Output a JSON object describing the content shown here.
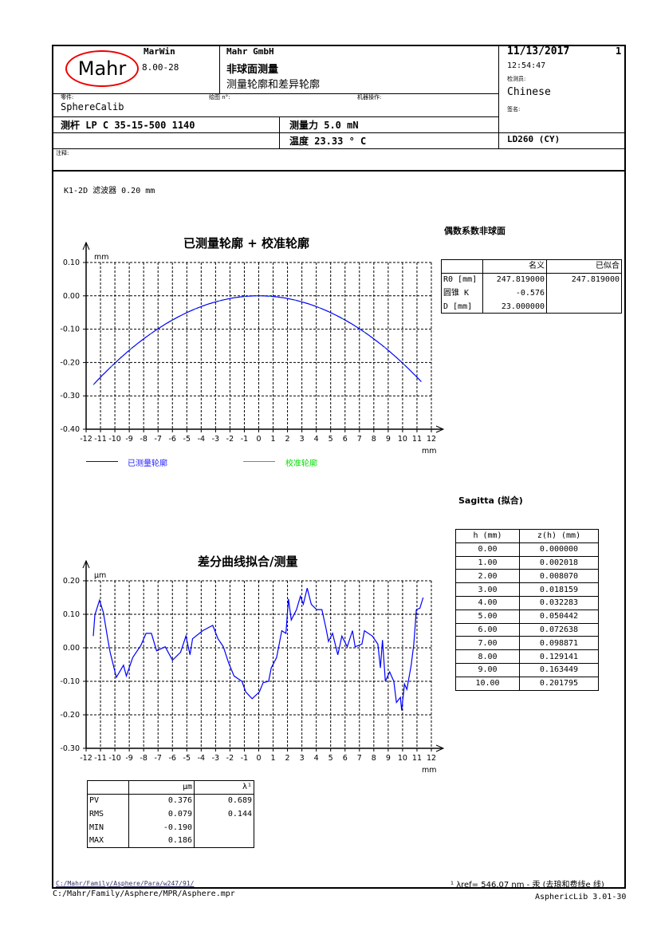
{
  "header": {
    "logo_text": "Mahr",
    "software": "MarWin",
    "version": "8.00-28",
    "company": "Mahr GmbH",
    "title": "非球面测量",
    "subtitle": "测量轮廓和差异轮廓",
    "date": "11/13/2017",
    "page": "1",
    "time": "12:54:47",
    "inspector_label": "检测员:",
    "inspector": "Chinese",
    "signature_label": "签名:",
    "part_label": "零件:",
    "part": "SphereCalib",
    "drawing_label": "绘图 n°:",
    "operator_label": "机器操作:",
    "stylus": "测杆 LP C 35-15-500 1140",
    "force": "测量力 5.0 mN",
    "temperature": "温度 23.33 ° C",
    "machine": "LD260 (CY)",
    "comment_label": "注释:"
  },
  "filter": "K1-2D 滤波器 0.20   mm",
  "coeff_table": {
    "title": "偶数系数非球面",
    "headers": [
      "",
      "名义",
      "已似合"
    ],
    "rows": [
      [
        "R0 [mm]",
        "247.819000",
        "247.819000"
      ],
      [
        "圆锥 K",
        "-0.576",
        ""
      ],
      [
        "D [mm]",
        "23.000000",
        ""
      ]
    ]
  },
  "sagitta_table": {
    "title": "Sagitta (拟合)",
    "headers": [
      "h (mm)",
      "z(h) (mm)"
    ],
    "rows": [
      [
        "0.00",
        "0.000000"
      ],
      [
        "1.00",
        "0.002018"
      ],
      [
        "2.00",
        "0.008070"
      ],
      [
        "3.00",
        "0.018159"
      ],
      [
        "4.00",
        "0.032283"
      ],
      [
        "5.00",
        "0.050442"
      ],
      [
        "6.00",
        "0.072638"
      ],
      [
        "7.00",
        "0.098871"
      ],
      [
        "8.00",
        "0.129141"
      ],
      [
        "9.00",
        "0.163449"
      ],
      [
        "10.00",
        "0.201795"
      ]
    ]
  },
  "stats_table": {
    "headers": [
      "",
      "μm",
      "λ¹"
    ],
    "rows": [
      [
        "PV",
        "0.376",
        "0.689"
      ],
      [
        "RMS",
        "0.079",
        "0.144"
      ],
      [
        "MIN",
        "-0.190",
        ""
      ],
      [
        "MAX",
        "0.186",
        ""
      ]
    ]
  },
  "footer": {
    "path1": "C:/Mahr/Family/Asphere/Para/w247/91/",
    "note": "¹ λref= 546.07 nm - 汞 (去琅和费线e 线)",
    "path2": "C:/Mahr/Family/Asphere/MPR/Asphere.mpr",
    "lib": "AsphericLib 3.01-30"
  },
  "chart_data": [
    {
      "type": "line",
      "title": "已测量轮廓 + 校准轮廓",
      "xlabel": "mm",
      "ylabel": "mm",
      "xlim": [
        -12,
        12
      ],
      "ylim": [
        -0.4,
        0.1
      ],
      "xticks": [
        "-12",
        "-11",
        "-10",
        "-9",
        "-8",
        "-7",
        "-6",
        "-5",
        "-4",
        "-3",
        "-2",
        "-1",
        "0",
        "1",
        "2",
        "3",
        "4",
        "5",
        "6",
        "7",
        "8",
        "9",
        "10",
        "11",
        "12"
      ],
      "yticks": [
        "0.10",
        "0.00",
        "-0.10",
        "-0.20",
        "-0.30",
        "-0.40"
      ],
      "grid": true,
      "legend": "bottom",
      "series": [
        {
          "name": "已测量轮廓",
          "color": "#0000ff",
          "radius_mm": 247.819,
          "conic_k": -0.576,
          "x_range": [
            -11.5,
            11.3
          ]
        },
        {
          "name": "校准轮廓",
          "color": "#00dd00",
          "radius_mm": 247.819,
          "conic_k": -0.576,
          "x_range": [
            -11.5,
            11.3
          ]
        }
      ]
    },
    {
      "type": "line",
      "title": "差分曲线拟合/测量",
      "xlabel": "mm",
      "ylabel": "μm",
      "xlim": [
        -12,
        12
      ],
      "ylim": [
        -0.3,
        0.2
      ],
      "xticks": [
        "-12",
        "-11",
        "-10",
        "-9",
        "-8",
        "-7",
        "-6",
        "-5",
        "-4",
        "-3",
        "-2",
        "-1",
        "0",
        "1",
        "2",
        "3",
        "4",
        "5",
        "6",
        "7",
        "8",
        "9",
        "10",
        "11",
        "12"
      ],
      "yticks": [
        "0.20",
        "0.10",
        "0.00",
        "-0.10",
        "-0.20",
        "-0.30"
      ],
      "grid": true,
      "series": [
        {
          "color": "#0000ff",
          "x": [
            -11.5,
            -11.39,
            -11.07,
            -10.8,
            -10.5,
            -10.33,
            -9.9,
            -9.4,
            -9.2,
            -8.76,
            -8.2,
            -7.83,
            -7.46,
            -7.1,
            -6.5,
            -6.0,
            -5.43,
            -5.06,
            -4.78,
            -4.6,
            -3.9,
            -3.2,
            -2.83,
            -2.46,
            -2.1,
            -1.72,
            -1.17,
            -0.9,
            -0.46,
            0.04,
            0.31,
            0.69,
            0.87,
            1.24,
            1.6,
            1.89,
            2.07,
            2.26,
            2.63,
            2.9,
            3.1,
            3.37,
            3.65,
            4.02,
            4.39,
            4.67,
            4.85,
            5.13,
            5.5,
            5.78,
            6.15,
            6.52,
            6.7,
            7.17,
            7.35,
            7.9,
            8.28,
            8.46,
            8.6,
            8.8,
            9.1,
            9.39,
            9.57,
            9.85,
            9.94,
            10.13,
            10.3,
            10.6,
            10.78,
            10.96,
            11.2,
            11.43
          ],
          "y": [
            0.035,
            0.098,
            0.142,
            0.106,
            0.027,
            -0.013,
            -0.088,
            -0.052,
            -0.084,
            -0.029,
            0.007,
            0.043,
            0.043,
            -0.009,
            0.003,
            -0.037,
            -0.013,
            0.035,
            -0.021,
            0.027,
            0.051,
            0.067,
            0.027,
            0.003,
            -0.044,
            -0.084,
            -0.1,
            -0.132,
            -0.152,
            -0.132,
            -0.104,
            -0.1,
            -0.06,
            -0.029,
            0.051,
            0.043,
            0.146,
            0.083,
            0.114,
            0.154,
            0.13,
            0.178,
            0.13,
            0.114,
            0.114,
            0.059,
            0.019,
            0.043,
            -0.021,
            0.035,
            0.003,
            0.051,
            0.003,
            0.011,
            0.051,
            0.035,
            0.011,
            -0.06,
            0.023,
            -0.1,
            -0.072,
            -0.1,
            -0.163,
            -0.148,
            -0.187,
            -0.108,
            -0.124,
            -0.052,
            0.011,
            0.114,
            0.118,
            0.15
          ]
        }
      ]
    }
  ]
}
